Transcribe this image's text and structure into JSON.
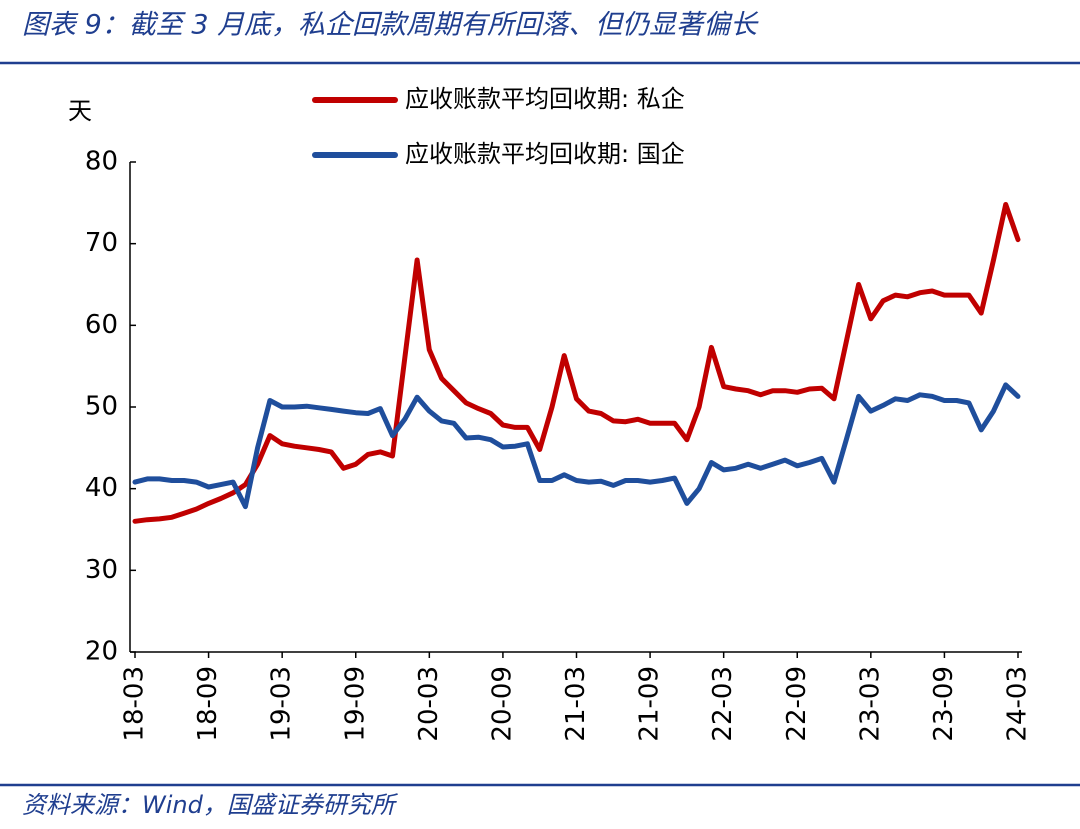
{
  "chart_data": {
    "type": "line",
    "title": "图表 9：截至 3 月底，私企回款周期有所回落、但仍显著偏长",
    "source": "资料来源：Wind，国盛证券研究所",
    "y_label": "天",
    "categories": [
      "18-03",
      null,
      null,
      null,
      null,
      null,
      "18-09",
      null,
      null,
      null,
      null,
      null,
      "19-03",
      null,
      null,
      null,
      null,
      null,
      "19-09",
      null,
      null,
      null,
      null,
      null,
      "20-03",
      null,
      null,
      null,
      null,
      null,
      "20-09",
      null,
      null,
      null,
      null,
      null,
      "21-03",
      null,
      null,
      null,
      null,
      null,
      "21-09",
      null,
      null,
      null,
      null,
      null,
      "22-03",
      null,
      null,
      null,
      null,
      null,
      "22-09",
      null,
      null,
      null,
      null,
      null,
      "23-03",
      null,
      null,
      null,
      null,
      null,
      "23-09",
      null,
      null,
      null,
      null,
      null,
      "24-03"
    ],
    "series": [
      {
        "name": "应收账款平均回收期: 私企",
        "color": "#c00000",
        "values": [
          36.0,
          36.2,
          36.3,
          36.5,
          37.0,
          37.5,
          38.2,
          38.8,
          39.5,
          40.5,
          43.0,
          46.5,
          45.5,
          45.2,
          45.0,
          44.8,
          44.5,
          42.5,
          43.0,
          44.2,
          44.5,
          44.0,
          56.0,
          68.0,
          57.0,
          53.5,
          52.0,
          50.5,
          49.8,
          49.2,
          47.8,
          47.5,
          47.5,
          44.8,
          50.0,
          56.3,
          51.0,
          49.5,
          49.2,
          48.3,
          48.2,
          48.5,
          48.0,
          48.0,
          48.0,
          46.0,
          50.0,
          57.3,
          52.5,
          52.2,
          52.0,
          51.5,
          52.0,
          52.0,
          51.8,
          52.2,
          52.3,
          51.0,
          58.0,
          65.0,
          60.8,
          63.0,
          63.7,
          63.5,
          64.0,
          64.2,
          63.7,
          63.7,
          63.7,
          61.5,
          68.0,
          74.8,
          70.5
        ]
      },
      {
        "name": "应收账款平均回收期: 国企",
        "color": "#1f4e9c",
        "values": [
          40.8,
          41.2,
          41.2,
          41.0,
          41.0,
          40.8,
          40.2,
          40.5,
          40.8,
          37.8,
          45.0,
          50.8,
          50.0,
          50.0,
          50.1,
          49.9,
          49.7,
          49.5,
          49.3,
          49.2,
          49.8,
          46.5,
          48.5,
          51.2,
          49.5,
          48.3,
          48.0,
          46.2,
          46.3,
          46.0,
          45.1,
          45.2,
          45.5,
          41.0,
          41.0,
          41.7,
          41.0,
          40.8,
          40.9,
          40.4,
          41.0,
          41.0,
          40.8,
          41.0,
          41.3,
          38.2,
          40.0,
          43.2,
          42.3,
          42.5,
          43.0,
          42.5,
          43.0,
          43.5,
          42.8,
          43.2,
          43.7,
          40.8,
          46.0,
          51.3,
          49.5,
          50.2,
          51.0,
          50.8,
          51.5,
          51.3,
          50.8,
          50.8,
          50.5,
          47.2,
          49.5,
          52.7,
          51.3
        ]
      }
    ],
    "ylim": [
      20,
      80
    ],
    "yticks": [
      20,
      30,
      40,
      50,
      60,
      70,
      80
    ],
    "grid": false
  }
}
